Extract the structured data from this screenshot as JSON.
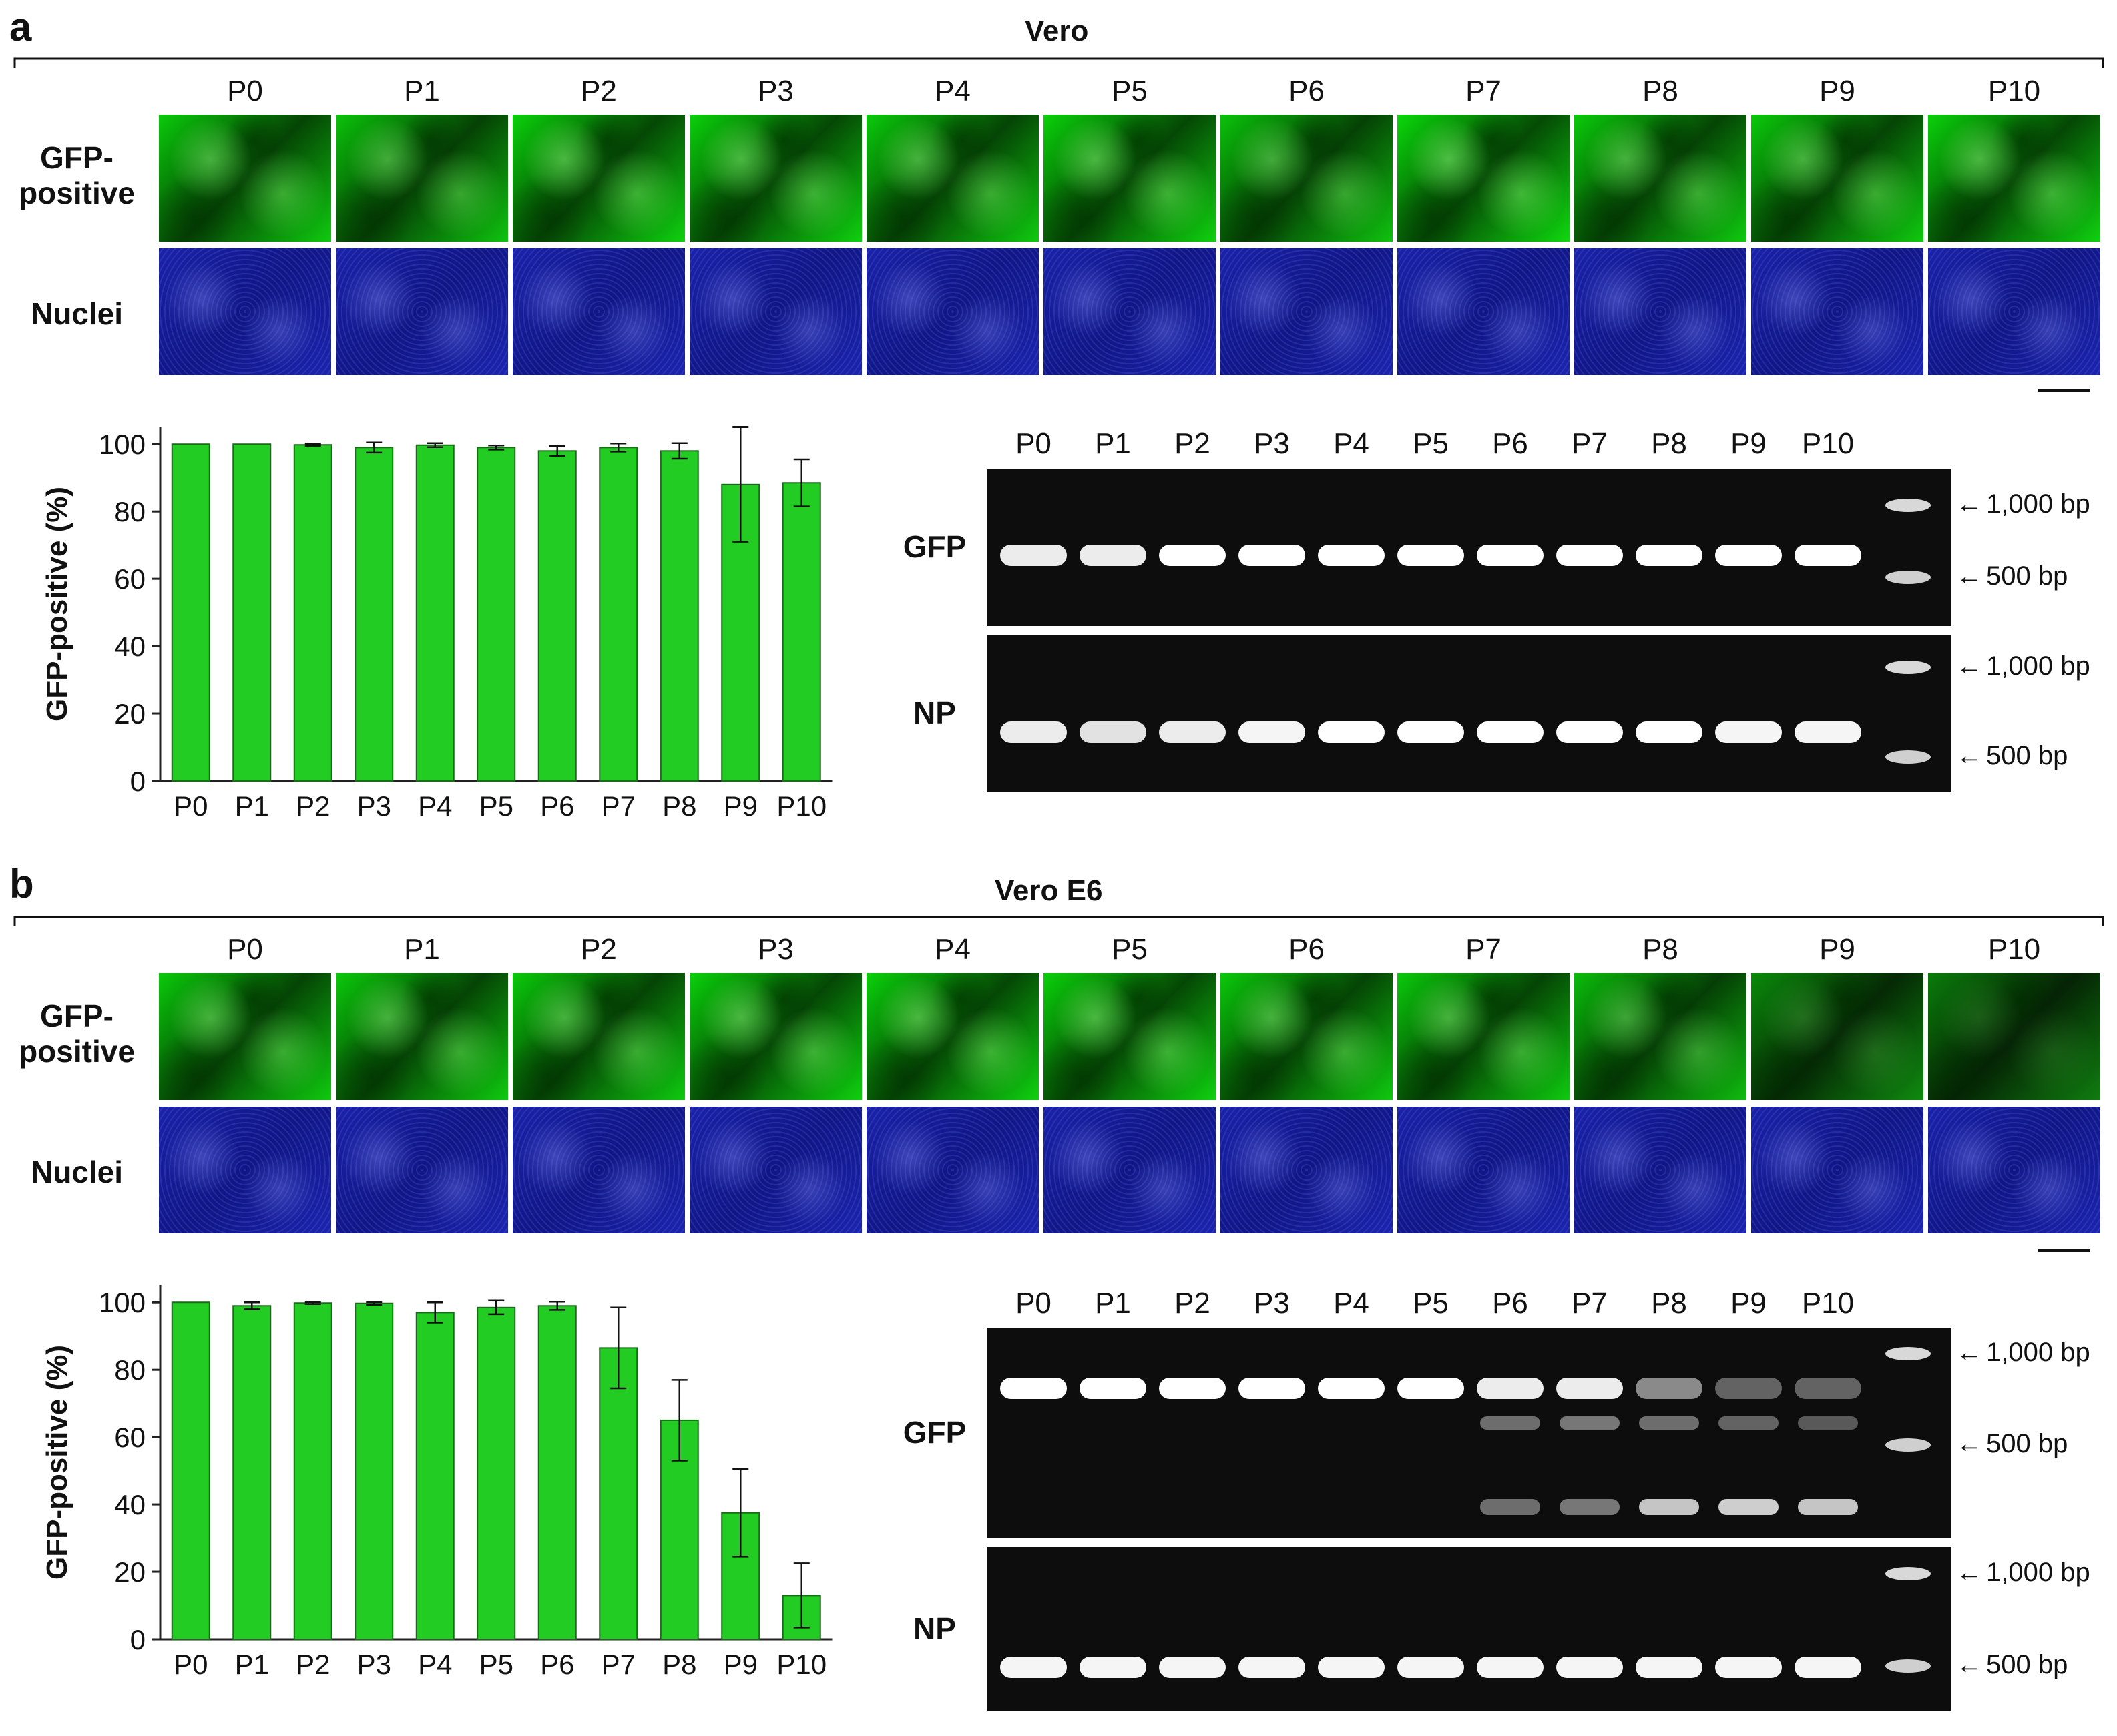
{
  "panels": [
    {
      "letter": "a",
      "cell_line": "Vero",
      "passages": [
        "P0",
        "P1",
        "P2",
        "P3",
        "P4",
        "P5",
        "P6",
        "P7",
        "P8",
        "P9",
        "P10"
      ],
      "image_rows": [
        "GFP-\npositive",
        "Nuclei"
      ],
      "gfp_brightness": [
        0.8,
        0.75,
        0.85,
        0.85,
        0.8,
        0.85,
        0.75,
        0.9,
        0.8,
        0.8,
        0.85
      ],
      "gel": {
        "lanes": [
          "P0",
          "P1",
          "P2",
          "P3",
          "P4",
          "P5",
          "P6",
          "P7",
          "P8",
          "P9",
          "P10"
        ],
        "gels": [
          {
            "label": "GFP",
            "markers": [
              "1,000 bp",
              "500 bp"
            ],
            "bands": [
              [
                0.9
              ],
              [
                0.9
              ],
              [
                1
              ],
              [
                1
              ],
              [
                1
              ],
              [
                1
              ],
              [
                1
              ],
              [
                1
              ],
              [
                1
              ],
              [
                1
              ],
              [
                1
              ]
            ],
            "faint": []
          },
          {
            "label": "NP",
            "markers": [
              "1,000 bp",
              "500 bp"
            ],
            "bands": [
              [
                0.9
              ],
              [
                0.85
              ],
              [
                0.9
              ],
              [
                0.95
              ],
              [
                1
              ],
              [
                1
              ],
              [
                1
              ],
              [
                1
              ],
              [
                1
              ],
              [
                0.95
              ],
              [
                0.95
              ]
            ],
            "faint": []
          }
        ]
      }
    },
    {
      "letter": "b",
      "cell_line": "Vero E6",
      "passages": [
        "P0",
        "P1",
        "P2",
        "P3",
        "P4",
        "P5",
        "P6",
        "P7",
        "P8",
        "P9",
        "P10"
      ],
      "image_rows": [
        "GFP-\npositive",
        "Nuclei"
      ],
      "gfp_brightness": [
        0.8,
        0.8,
        0.8,
        0.85,
        0.85,
        0.85,
        0.8,
        0.8,
        0.7,
        0.35,
        0.25
      ],
      "gel": {
        "lanes": [
          "P0",
          "P1",
          "P2",
          "P3",
          "P4",
          "P5",
          "P6",
          "P7",
          "P8",
          "P9",
          "P10"
        ],
        "gels": [
          {
            "label": "GFP",
            "markers": [
              "1,000 bp",
              "500 bp"
            ],
            "bands": [
              [
                1
              ],
              [
                1
              ],
              [
                1
              ],
              [
                1
              ],
              [
                1
              ],
              [
                1
              ],
              [
                0.9
              ],
              [
                0.9
              ],
              [
                0.4
              ],
              [
                0.2
              ],
              [
                0.2
              ]
            ],
            "faint": [
              [
                6,
                0.25,
                0.25,
                0.1
              ],
              [
                7,
                0.3,
                0.3,
                0.2
              ],
              [
                8,
                0.25,
                0.7,
                0.0
              ],
              [
                9,
                0.2,
                0.75,
                0.0
              ],
              [
                10,
                0.15,
                0.7,
                0.0
              ]
            ]
          },
          {
            "label": "NP",
            "markers": [
              "1,000 bp",
              "500 bp"
            ],
            "bands": [
              [
                0.95
              ],
              [
                0.95
              ],
              [
                0.95
              ],
              [
                0.95
              ],
              [
                0.95
              ],
              [
                0.95
              ],
              [
                0.95
              ],
              [
                0.95
              ],
              [
                0.95
              ],
              [
                0.95
              ],
              [
                0.95
              ]
            ],
            "faint": []
          }
        ]
      }
    }
  ],
  "chart_data": [
    {
      "type": "bar",
      "panel": "a",
      "categories": [
        "P0",
        "P1",
        "P2",
        "P3",
        "P4",
        "P5",
        "P6",
        "P7",
        "P8",
        "P9",
        "P10"
      ],
      "values": [
        100,
        100,
        99.8,
        99,
        99.7,
        99,
        98,
        99,
        98,
        88,
        88.5
      ],
      "errors": [
        0,
        0,
        0.3,
        1.5,
        0.6,
        0.6,
        1.5,
        1.2,
        2.3,
        17,
        7
      ],
      "ylabel": "GFP-positive (%)",
      "xlabel": "",
      "ylim": [
        0,
        105
      ],
      "yticks": [
        0,
        20,
        40,
        60,
        80,
        100
      ],
      "bar_color": "#22cc22"
    },
    {
      "type": "bar",
      "panel": "b",
      "categories": [
        "P0",
        "P1",
        "P2",
        "P3",
        "P4",
        "P5",
        "P6",
        "P7",
        "P8",
        "P9",
        "P10"
      ],
      "values": [
        100,
        99,
        99.8,
        99.7,
        97,
        98.5,
        99,
        86.5,
        65,
        37.5,
        13
      ],
      "errors": [
        0,
        1,
        0.3,
        0.4,
        3,
        2,
        1.2,
        12,
        12,
        13,
        9.5
      ],
      "ylabel": "GFP-positive (%)",
      "xlabel": "",
      "ylim": [
        0,
        105
      ],
      "yticks": [
        0,
        20,
        40,
        60,
        80,
        100
      ],
      "bar_color": "#22cc22"
    }
  ]
}
